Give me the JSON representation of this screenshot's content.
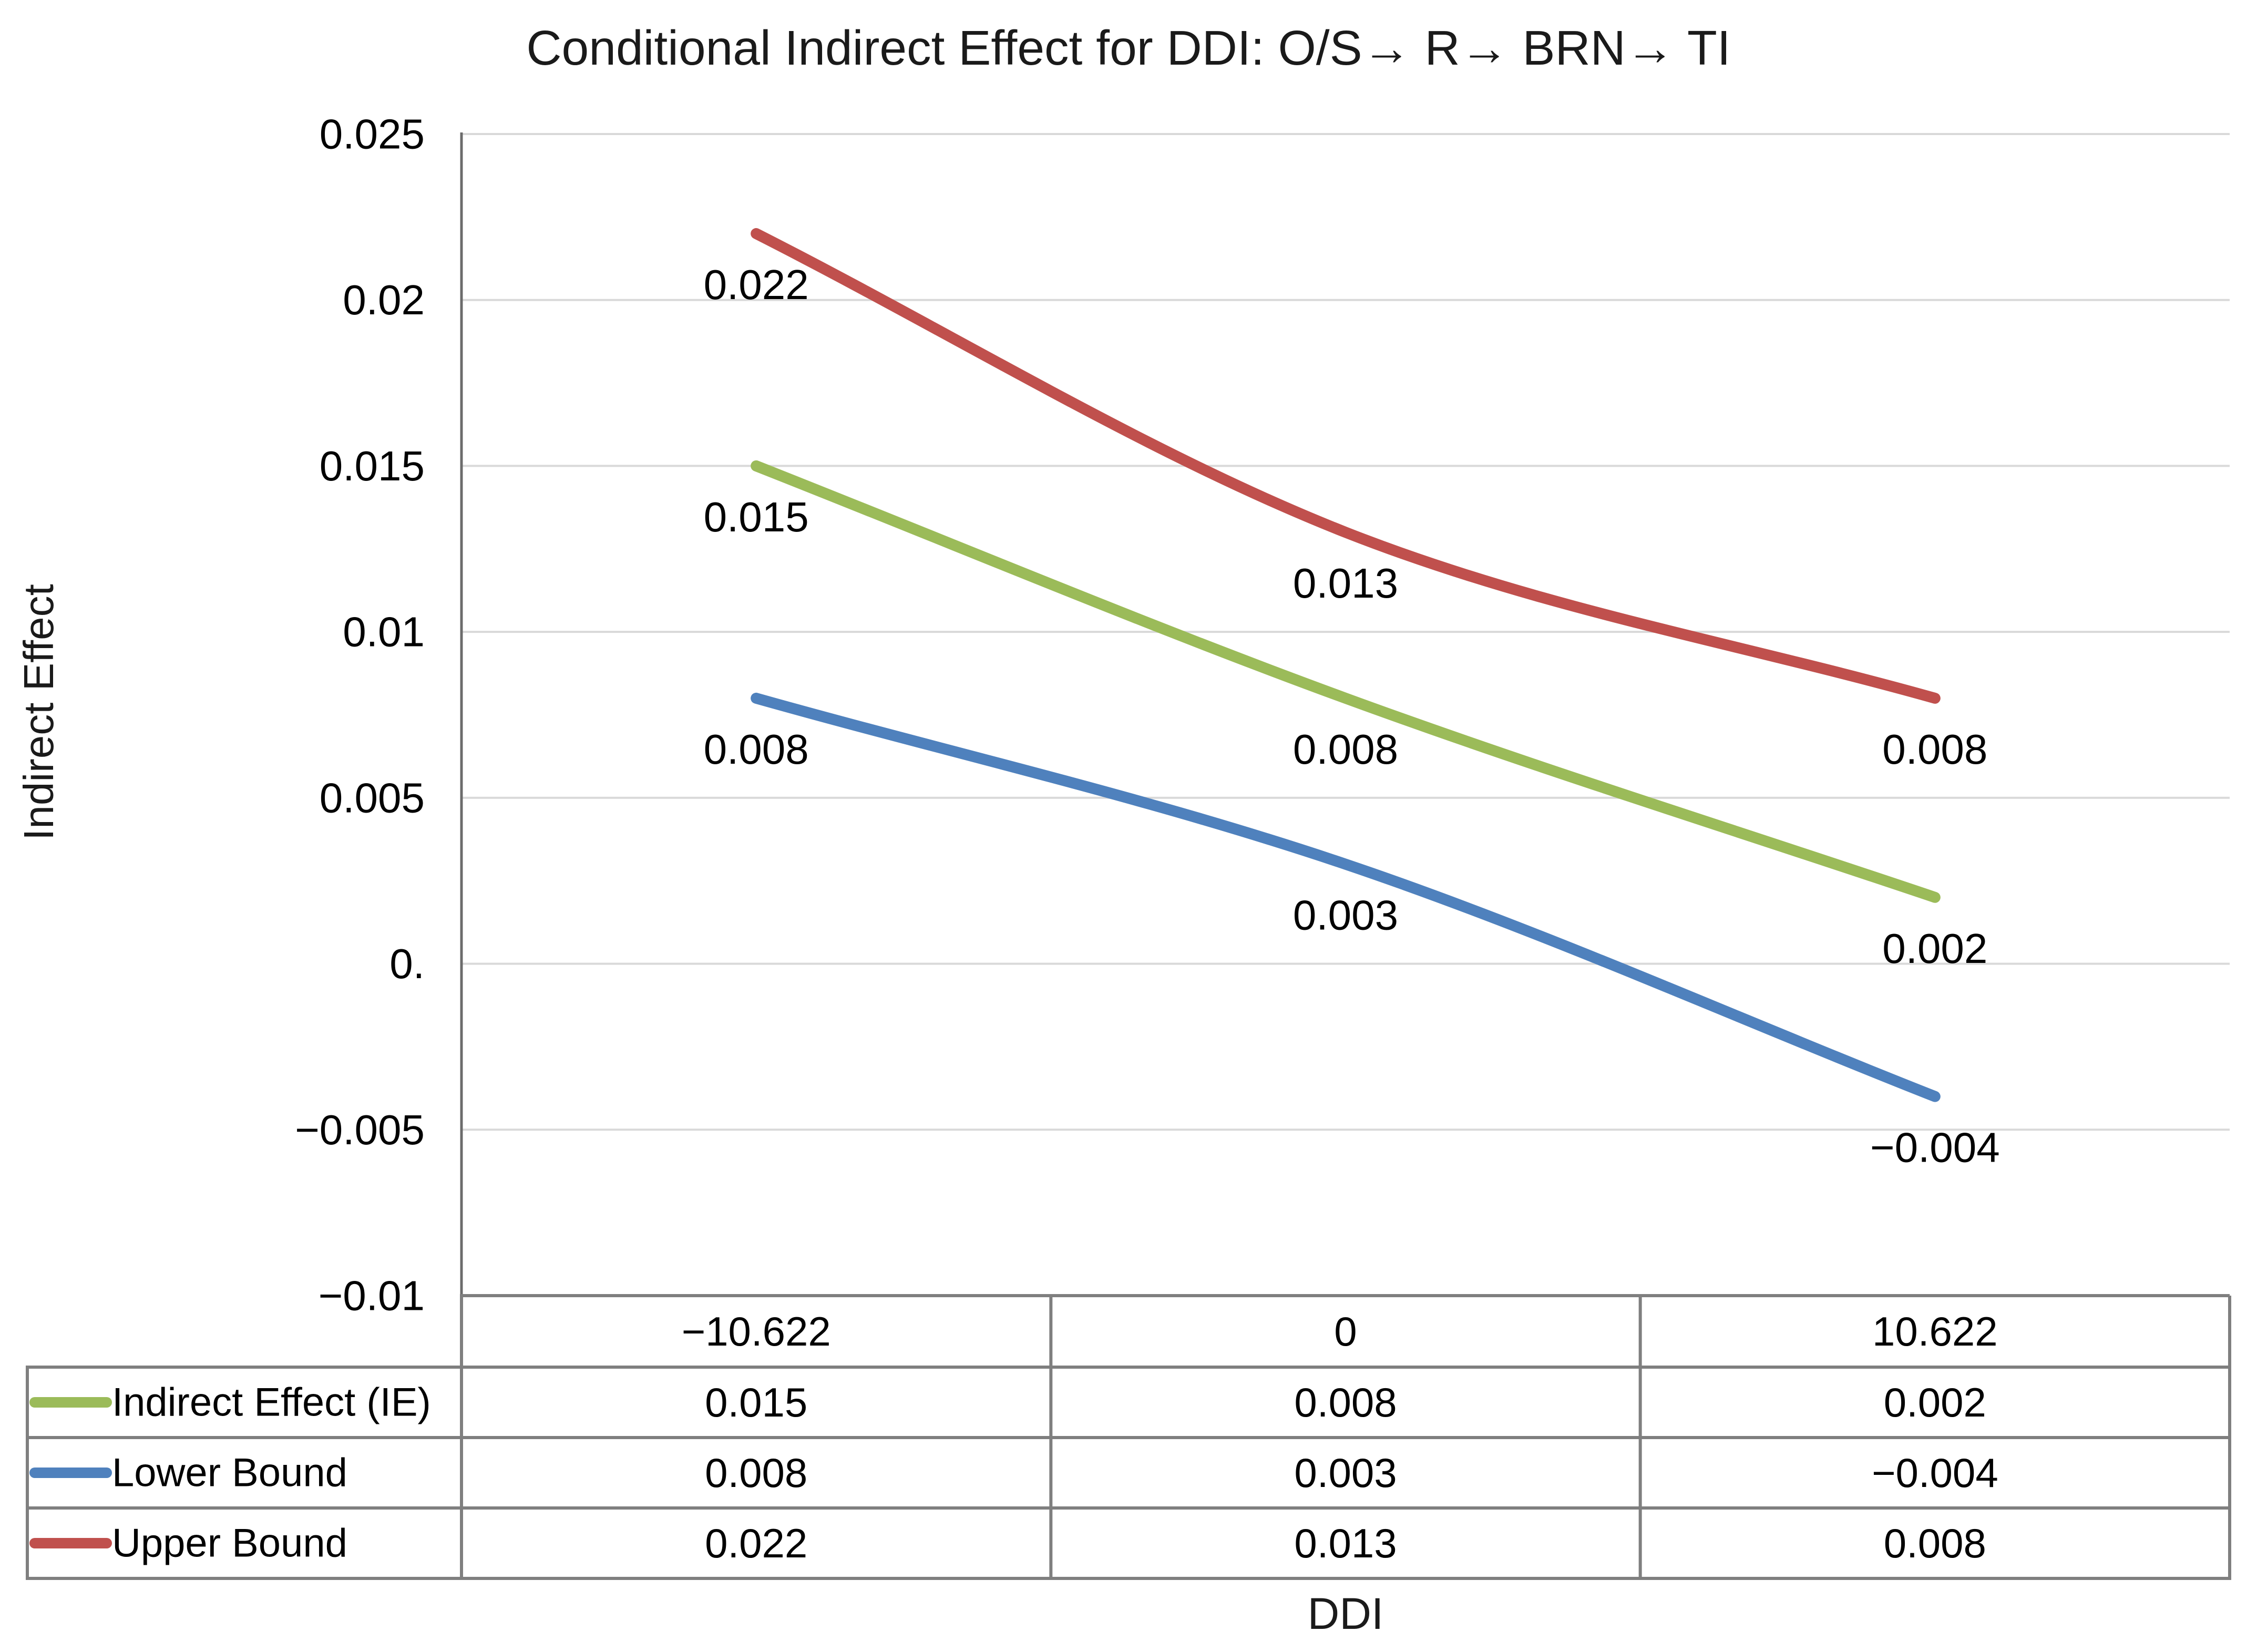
{
  "chart_data": {
    "type": "line",
    "title": "Conditional Indirect Effect for DDI: O/S→ R→ BRN→ TI",
    "xlabel": "DDI",
    "ylabel": "Indirect Effect",
    "categories": [
      "−10.622",
      "0",
      "10.622"
    ],
    "x_values": [
      -10.622,
      0,
      10.622
    ],
    "ylim": [
      -0.01,
      0.025
    ],
    "ytick_step": 0.005,
    "ytick_labels_top_to_bottom": [
      "0.025",
      "0.02",
      "0.015",
      "0.01",
      "0.005",
      "0.",
      "−0.005",
      "−0.01"
    ],
    "grid": true,
    "smoothed_lines": true,
    "legend_position": "data-table-left",
    "data_labels_position": "below",
    "series": [
      {
        "name": "Indirect Effect (IE)",
        "color": "#9BBB59",
        "values": [
          0.015,
          0.008,
          0.002
        ],
        "labels": [
          "0.015",
          "0.008",
          "0.002"
        ]
      },
      {
        "name": "Lower Bound",
        "color": "#4F81BD",
        "values": [
          0.008,
          0.003,
          -0.004
        ],
        "labels": [
          "0.008",
          "0.003",
          "−0.004"
        ]
      },
      {
        "name": "Upper Bound",
        "color": "#C0504D",
        "values": [
          0.022,
          0.013,
          0.008
        ],
        "labels": [
          "0.022",
          "0.013",
          "0.008"
        ]
      }
    ],
    "colors": {
      "gridline": "#D9D9D9",
      "axis": "#6b6b6b",
      "table_border": "#7F7F7F",
      "text": "#000000",
      "background": "#ffffff"
    }
  }
}
